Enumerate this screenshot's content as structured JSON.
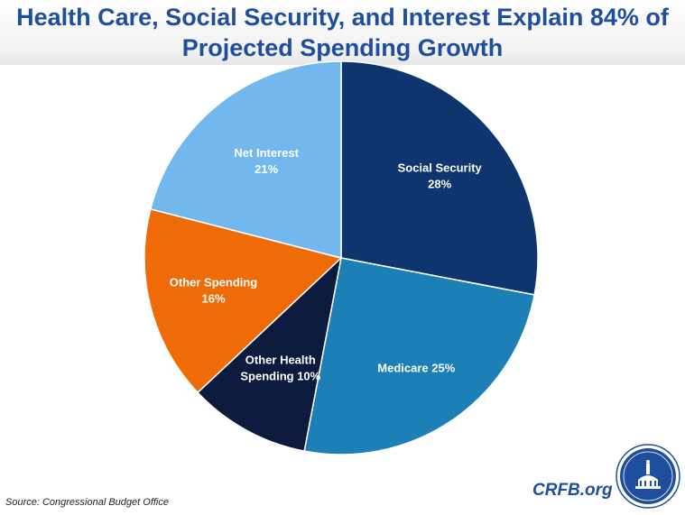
{
  "title_lines": [
    "Health Care, Social Security, and Interest Explain 84% of",
    "Projected Spending Growth"
  ],
  "source": "Source: Congressional Budget Office",
  "brand": "CRFB.org",
  "chart_data": {
    "type": "pie",
    "title": "Health Care, Social Security, and Interest Explain 84% of Projected Spending Growth",
    "slices": [
      {
        "label": "Social Security",
        "value": 28,
        "display": [
          "Social Security",
          "28%"
        ],
        "color": "#0e356d"
      },
      {
        "label": "Medicare",
        "value": 25,
        "display": [
          "Medicare 25%"
        ],
        "color": "#1c7fb5"
      },
      {
        "label": "Other Health Spending",
        "value": 10,
        "display": [
          "Other Health",
          "Spending 10%"
        ],
        "color": "#0b1a3d"
      },
      {
        "label": "Other Spending",
        "value": 16,
        "display": [
          "Other Spending",
          "16%"
        ],
        "color": "#ee6b08"
      },
      {
        "label": "Net Interest",
        "value": 21,
        "display": [
          "Net Interest",
          "21%"
        ],
        "color": "#72b7ee"
      }
    ]
  }
}
